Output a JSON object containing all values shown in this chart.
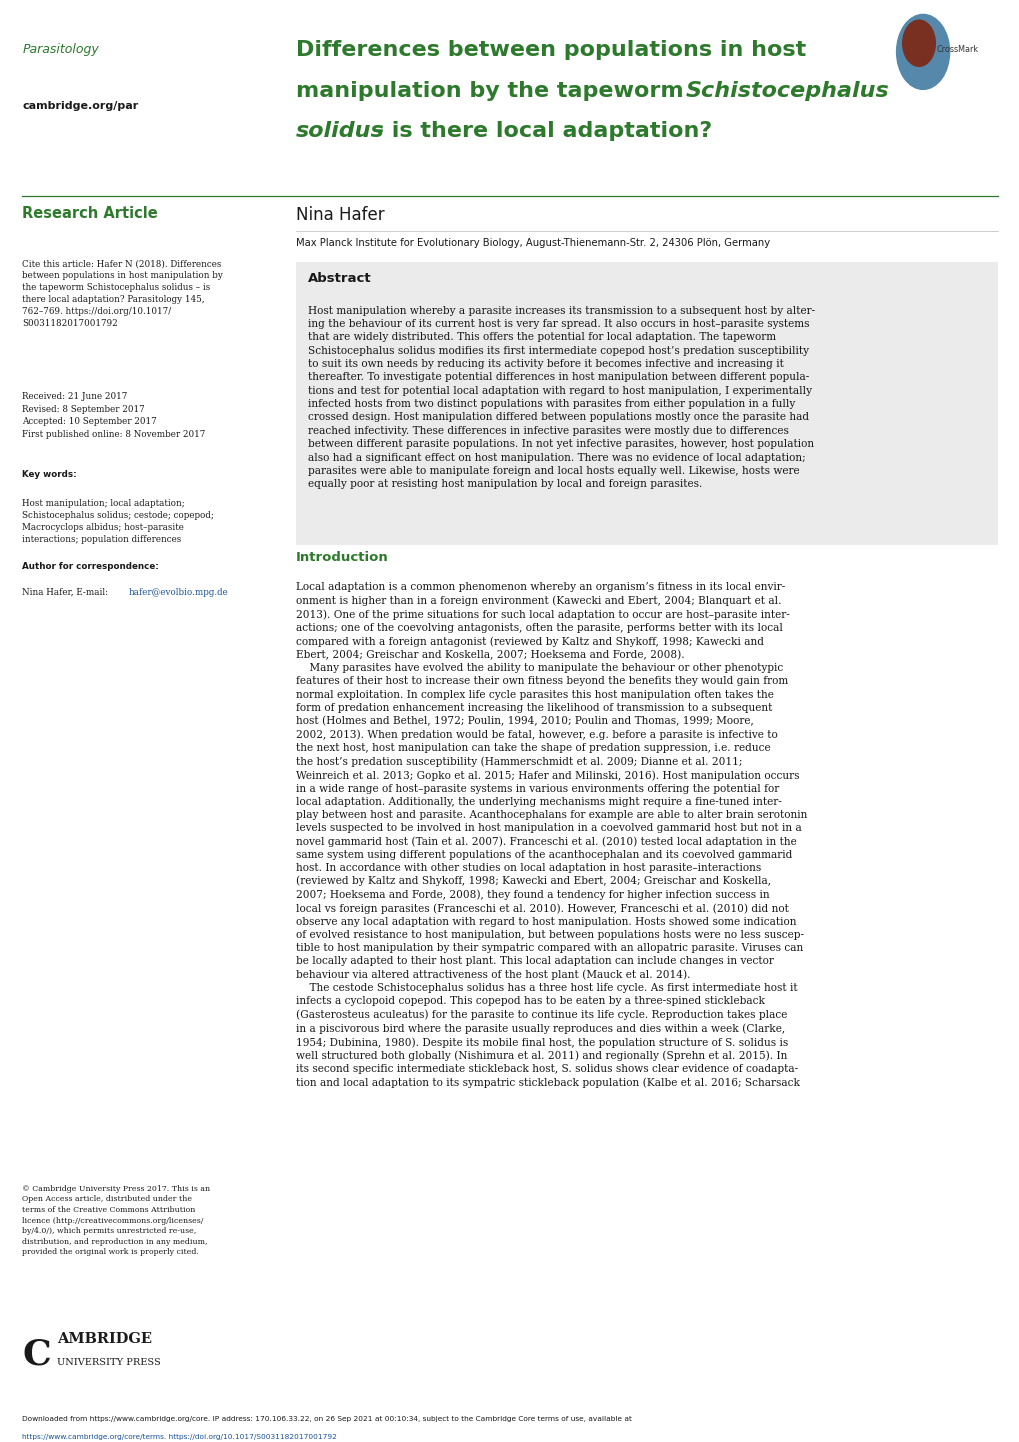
{
  "page_width": 10.2,
  "page_height": 14.42,
  "background_color": "#ffffff",
  "green_color": "#2d7a2d",
  "blue_link_color": "#1a5296",
  "gray_abstract_bg": "#ebebeb",
  "dark_text": "#1a1a1a",
  "header": {
    "journal_name": "Parasitology",
    "cambridge_url": "cambridge.org/par",
    "title_line1": "Differences between populations in host",
    "title_line2a": "manipulation by the tapeworm ",
    "title_line2b": "Schistocephalus",
    "title_line3a": "solidus",
    "title_line3b": " – is there local adaptation?",
    "title_color": "#2d7a2d"
  },
  "left_column": {
    "research_article_label": "Research Article",
    "cite_full": "Cite this article: Hafer N (2018). Differences\nbetween populations in host manipulation by\nthe tapeworm Schistocephalus solidus – is\nthere local adaptation? Parasitology 145,\n762–769. https://doi.org/10.1017/\nS0031182017001792",
    "dates": "Received: 21 June 2017\nRevised: 8 September 2017\nAccepted: 10 September 2017\nFirst published online: 8 November 2017",
    "keywords_label": "Key words:",
    "keywords_text": "Host manipulation; local adaptation;\nSchistocephalus solidus; cestode; copepod;\nMacrocyclops albidus; host–parasite\ninteractions; population differences",
    "author_corr_label": "Author for correspondence:",
    "author_corr_name": "Nina Hafer, E-mail: ",
    "author_corr_email": "hafer@evolbio.mpg.de",
    "copyright_text": "© Cambridge University Press 2017. This is an\nOpen Access article, distributed under the\nterms of the Creative Commons Attribution\nlicence (http://creativecommons.org/licenses/\nby/4.0/), which permits unrestricted re-use,\ndistribution, and reproduction in any medium,\nprovided the original work is properly cited."
  },
  "main_content": {
    "author": "Nina Hafer",
    "affiliation": "Max Planck Institute for Evolutionary Biology, August-Thienemann-Str. 2, 24306 Plön, Germany",
    "abstract_title": "Abstract",
    "abstract_text": "Host manipulation whereby a parasite increases its transmission to a subsequent host by alter-\ning the behaviour of its current host is very far spread. It also occurs in host–parasite systems\nthat are widely distributed. This offers the potential for local adaptation. The tapeworm\nSchistocephalus solidus modifies its first intermediate copepod host’s predation susceptibility\nto suit its own needs by reducing its activity before it becomes infective and increasing it\nthereafter. To investigate potential differences in host manipulation between different popula-\ntions and test for potential local adaptation with regard to host manipulation, I experimentally\ninfected hosts from two distinct populations with parasites from either population in a fully\ncrossed design. Host manipulation differed between populations mostly once the parasite had\nreached infectivity. These differences in infective parasites were mostly due to differences\nbetween different parasite populations. In not yet infective parasites, however, host population\nalso had a significant effect on host manipulation. There was no evidence of local adaptation;\nparasites were able to manipulate foreign and local hosts equally well. Likewise, hosts were\nequally poor at resisting host manipulation by local and foreign parasites.",
    "intro_title": "Introduction",
    "intro_text": "Local adaptation is a common phenomenon whereby an organism’s fitness in its local envir-\nonment is higher than in a foreign environment (Kawecki and Ebert, 2004; Blanquart et al.\n2013). One of the prime situations for such local adaptation to occur are host–parasite inter-\nactions; one of the coevolving antagonists, often the parasite, performs better with its local\ncompared with a foreign antagonist (reviewed by Kaltz and Shykoff, 1998; Kawecki and\nEbert, 2004; Greischar and Koskella, 2007; Hoeksema and Forde, 2008).\n    Many parasites have evolved the ability to manipulate the behaviour or other phenotypic\nfeatures of their host to increase their own fitness beyond the benefits they would gain from\nnormal exploitation. In complex life cycle parasites this host manipulation often takes the\nform of predation enhancement increasing the likelihood of transmission to a subsequent\nhost (Holmes and Bethel, 1972; Poulin, 1994, 2010; Poulin and Thomas, 1999; Moore,\n2002, 2013). When predation would be fatal, however, e.g. before a parasite is infective to\nthe next host, host manipulation can take the shape of predation suppression, i.e. reduce\nthe host’s predation susceptibility (Hammerschmidt et al. 2009; Dianne et al. 2011;\nWeinreich et al. 2013; Gopko et al. 2015; Hafer and Milinski, 2016). Host manipulation occurs\nin a wide range of host–parasite systems in various environments offering the potential for\nlocal adaptation. Additionally, the underlying mechanisms might require a fine-tuned inter-\nplay between host and parasite. Acanthocephalans for example are able to alter brain serotonin\nlevels suspected to be involved in host manipulation in a coevolved gammarid host but not in a\nnovel gammarid host (Tain et al. 2007). Franceschi et al. (2010) tested local adaptation in the\nsame system using different populations of the acanthocephalan and its coevolved gammarid\nhost. In accordance with other studies on local adaptation in host parasite–interactions\n(reviewed by Kaltz and Shykoff, 1998; Kawecki and Ebert, 2004; Greischar and Koskella,\n2007; Hoeksema and Forde, 2008), they found a tendency for higher infection success in\nlocal vs foreign parasites (Franceschi et al. 2010). However, Franceschi et al. (2010) did not\nobserve any local adaptation with regard to host manipulation. Hosts showed some indication\nof evolved resistance to host manipulation, but between populations hosts were no less suscep-\ntible to host manipulation by their sympatric compared with an allopatric parasite. Viruses can\nbe locally adapted to their host plant. This local adaptation can include changes in vector\nbehaviour via altered attractiveness of the host plant (Mauck et al. 2014).\n    The cestode Schistocephalus solidus has a three host life cycle. As first intermediate host it\ninfects a cyclopoid copepod. This copepod has to be eaten by a three-spined stickleback\n(Gasterosteus aculeatus) for the parasite to continue its life cycle. Reproduction takes place\nin a piscivorous bird where the parasite usually reproduces and dies within a week (Clarke,\n1954; Dubinina, 1980). Despite its mobile final host, the population structure of S. solidus is\nwell structured both globally (Nishimura et al. 2011) and regionally (Sprehn et al. 2015). In\nits second specific intermediate stickleback host, S. solidus shows clear evidence of coadapta-\ntion and local adaptation to its sympatric stickleback population (Kalbe et al. 2016; Scharsack",
    "footer_line1": "Downloaded from https://www.cambridge.org/core. IP address: 170.106.33.22, on 26 Sep 2021 at 00:10:34, subject to the Cambridge Core terms of use, available at",
    "footer_line2": "https://www.cambridge.org/core/terms. https://doi.org/10.1017/S0031182017001792"
  }
}
